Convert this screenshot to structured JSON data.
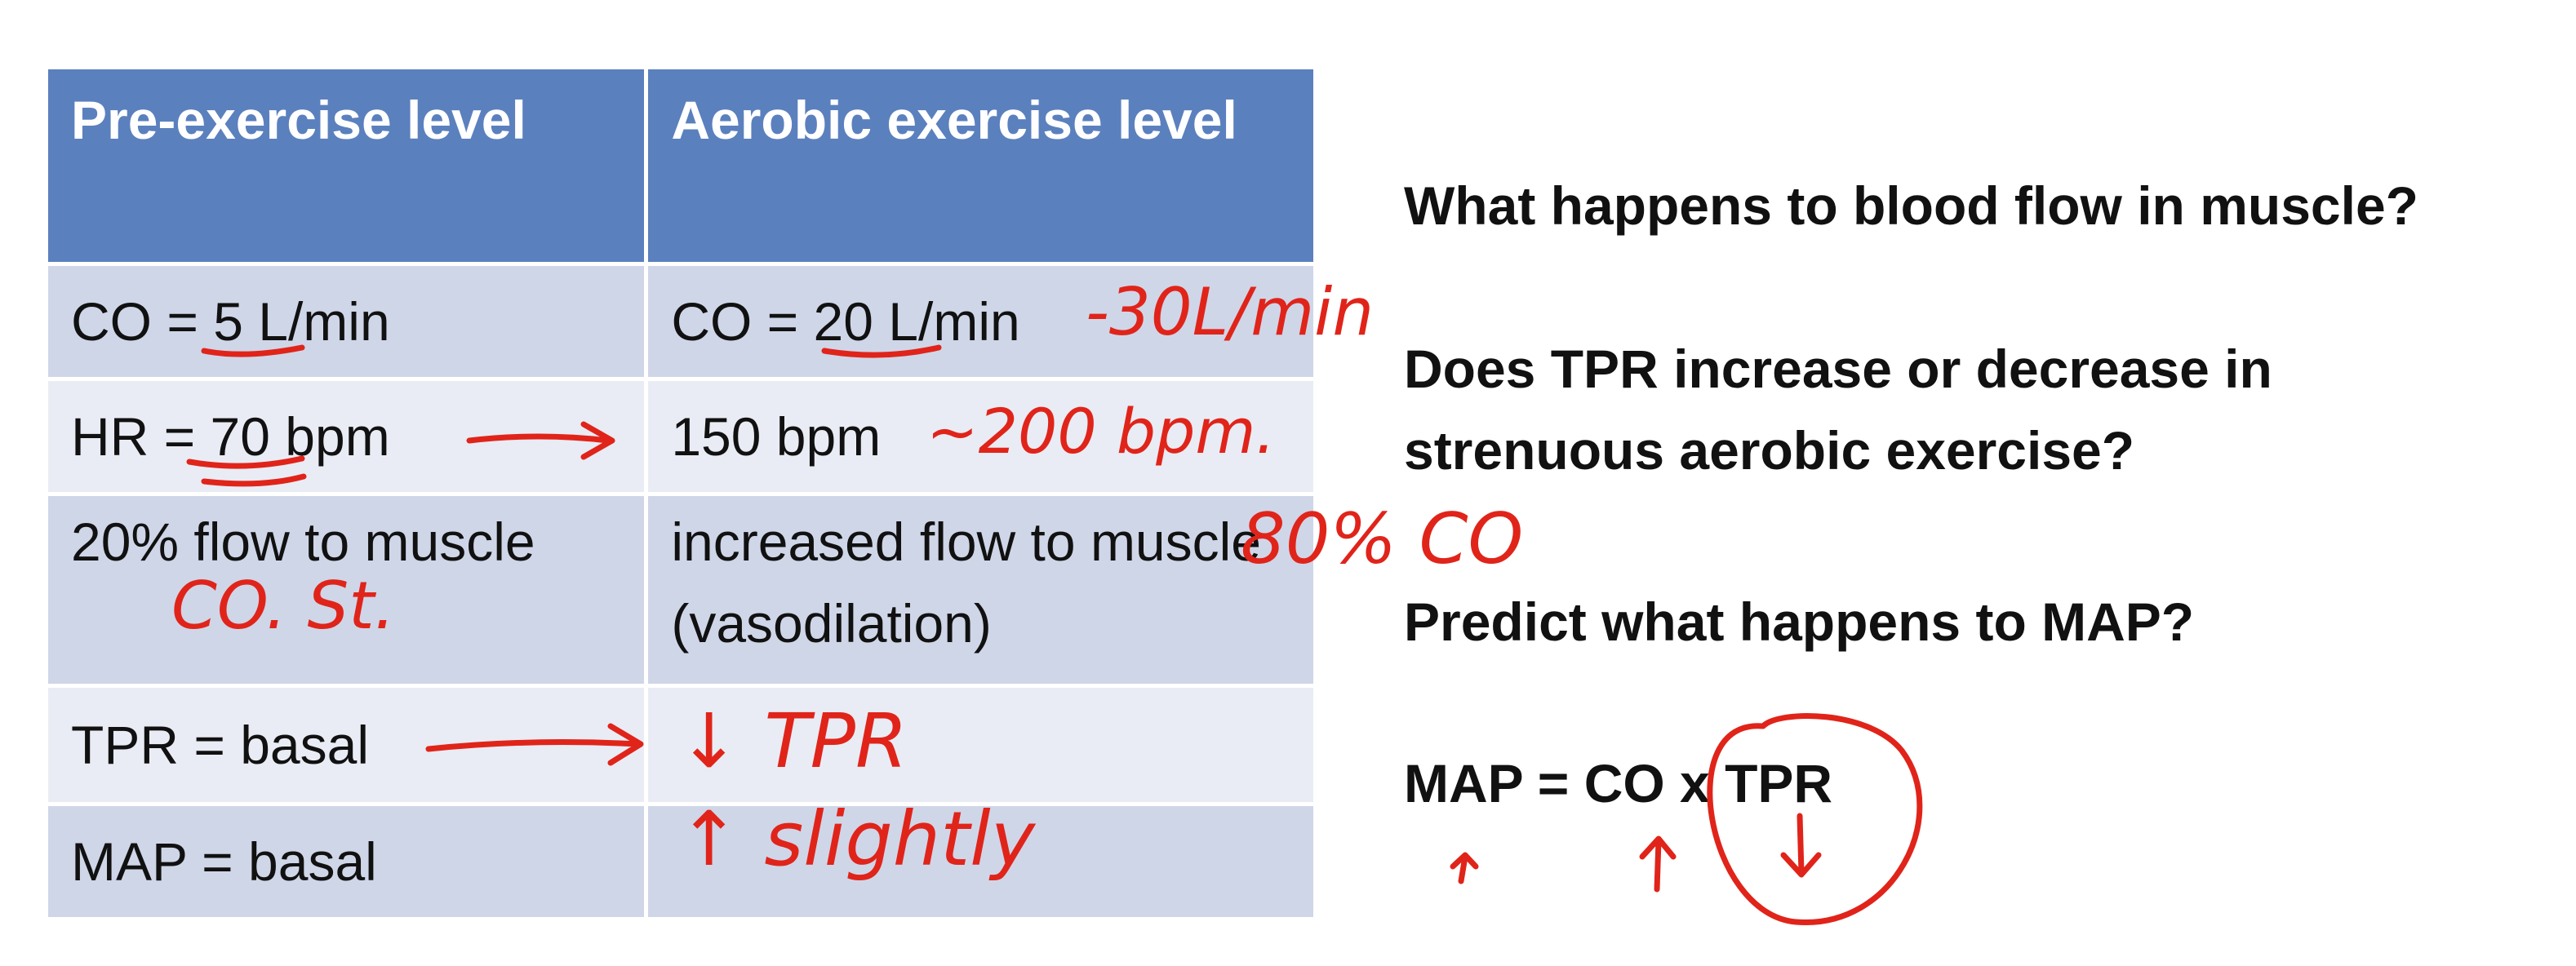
{
  "table": {
    "headers": [
      "Pre-exercise level",
      "Aerobic exercise level"
    ],
    "rows": [
      {
        "pre": "CO = 5 L/min",
        "aerobic": "CO = 20 L/min"
      },
      {
        "pre": "HR = 70 bpm",
        "aerobic": "150 bpm"
      },
      {
        "pre": "20% flow to muscle",
        "aerobic": "increased flow to muscle (vasodilation)"
      },
      {
        "pre": "TPR = basal",
        "aerobic": ""
      },
      {
        "pre": "MAP = basal",
        "aerobic": ""
      }
    ]
  },
  "questions": [
    "What happens to blood flow in muscle?",
    "Does TPR increase or decrease in",
    "strenuous aerobic exercise?",
    "Predict what happens to MAP?"
  ],
  "formula": "MAP = CO x TPR",
  "annotations": {
    "co_note": "-30L/min",
    "hr_note": "~200 bpm.",
    "flow_note": "80% CO",
    "rest_note": "CO.   St.",
    "tpr_note": "↓ TPR",
    "map_note": "↑ slightly"
  },
  "colors": {
    "header_bg": "#5b80be",
    "row_dark": "#cfd6e8",
    "row_light": "#e9ecf4",
    "ink": "#e0241a"
  }
}
